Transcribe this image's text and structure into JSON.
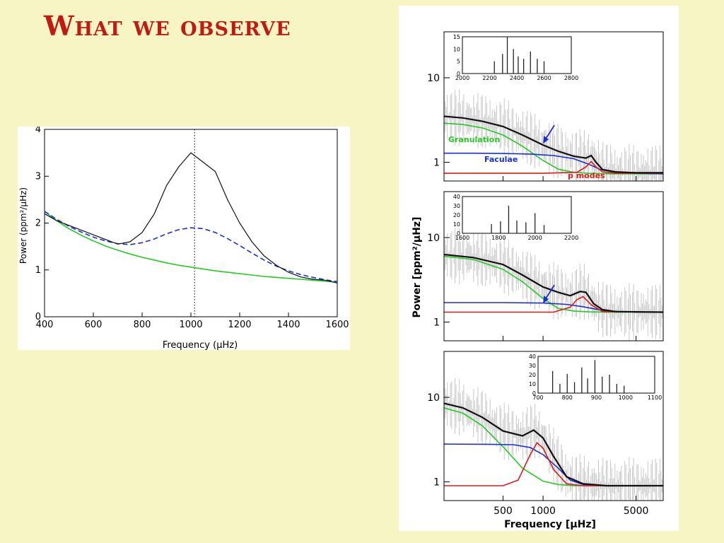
{
  "slide": {
    "title": "What we observe"
  },
  "colors": {
    "background": "#f8f5c4",
    "title": "#c11a12",
    "granulation": "#22cc22",
    "faculae": "#1a2fd6",
    "pmodes": "#e01a1a",
    "total": "#111111",
    "raw": "#c8c8c8",
    "pointer": "#1a2fd6"
  },
  "chart_data": [
    {
      "type": "line",
      "xlabel": "Frequency (μHz)",
      "ylabel": "Power (ppm²/μHz)",
      "xlim": [
        400,
        1600
      ],
      "ylim": [
        0,
        4
      ],
      "x_ticks": [
        400,
        600,
        800,
        1000,
        1200,
        1400,
        1600
      ],
      "y_ticks": [
        0,
        1,
        2,
        3,
        4
      ],
      "vertical_marker_x": 1015,
      "grid": false,
      "series": [
        {
          "style": "black solid (smoothed spectrum)",
          "color": "#111111",
          "x": [
            400,
            450,
            500,
            550,
            600,
            650,
            700,
            750,
            800,
            850,
            900,
            950,
            1000,
            1050,
            1100,
            1150,
            1200,
            1250,
            1300,
            1350,
            1400,
            1450,
            1500,
            1550,
            1600
          ],
          "y": [
            2.2,
            2.05,
            1.95,
            1.85,
            1.75,
            1.65,
            1.55,
            1.6,
            1.8,
            2.2,
            2.8,
            3.2,
            3.5,
            3.3,
            3.1,
            2.5,
            2.0,
            1.6,
            1.3,
            1.1,
            0.95,
            0.85,
            0.8,
            0.78,
            0.72
          ]
        },
        {
          "style": "blue dashed",
          "color": "#1a2fd6",
          "x": [
            400,
            450,
            500,
            550,
            600,
            650,
            700,
            750,
            800,
            850,
            900,
            950,
            1000,
            1050,
            1100,
            1150,
            1200,
            1250,
            1300,
            1350,
            1400,
            1450,
            1500,
            1550,
            1600
          ],
          "y": [
            2.25,
            2.08,
            1.93,
            1.81,
            1.7,
            1.62,
            1.56,
            1.54,
            1.58,
            1.66,
            1.77,
            1.86,
            1.9,
            1.88,
            1.8,
            1.67,
            1.52,
            1.36,
            1.21,
            1.08,
            0.98,
            0.9,
            0.84,
            0.79,
            0.75
          ]
        },
        {
          "style": "green solid",
          "color": "#22cc22",
          "x": [
            400,
            450,
            500,
            550,
            600,
            650,
            700,
            750,
            800,
            850,
            900,
            950,
            1000,
            1050,
            1100,
            1150,
            1200,
            1250,
            1300,
            1350,
            1400,
            1450,
            1500,
            1550,
            1600
          ],
          "y": [
            2.25,
            2.05,
            1.88,
            1.74,
            1.62,
            1.51,
            1.42,
            1.34,
            1.27,
            1.21,
            1.15,
            1.1,
            1.06,
            1.02,
            0.98,
            0.95,
            0.92,
            0.89,
            0.86,
            0.84,
            0.82,
            0.8,
            0.78,
            0.76,
            0.74
          ]
        }
      ]
    },
    {
      "type": "line",
      "xscale": "log",
      "yscale": "log",
      "xlabel": "Frequency [μHz]",
      "ylabel": "Power [ppm²/μHz]",
      "xlim": [
        180,
        8000
      ],
      "x_ticks": [
        500,
        1000,
        5000
      ],
      "y_ticks": [
        1,
        10
      ],
      "panels": [
        {
          "ylim": [
            0.6,
            35
          ],
          "arrow_at_x": 1000,
          "labels": [
            {
              "text": "Granulation",
              "color": "#22cc22"
            },
            {
              "text": "Faculae",
              "color": "#1a2fd6"
            },
            {
              "text": "p modes",
              "color": "#e01a1a"
            }
          ],
          "series": [
            {
              "name": "Granulation",
              "color": "#22cc22",
              "x": [
                180,
                250,
                350,
                500,
                700,
                1000,
                1300,
                1700,
                2200,
                3000,
                5000,
                8000
              ],
              "y": [
                2.9,
                2.8,
                2.55,
                2.1,
                1.55,
                1.05,
                0.83,
                0.76,
                0.74,
                0.73,
                0.73,
                0.73
              ]
            },
            {
              "name": "Faculae",
              "color": "#1a2fd6",
              "x": [
                180,
                300,
                500,
                800,
                1200,
                1700,
                2200,
                2700,
                3500,
                5000,
                8000
              ],
              "y": [
                1.28,
                1.28,
                1.27,
                1.25,
                1.2,
                1.1,
                0.95,
                0.82,
                0.76,
                0.74,
                0.73
              ]
            },
            {
              "name": "p modes",
              "color": "#e01a1a",
              "x": [
                180,
                1000,
                1800,
                2100,
                2300,
                2500,
                2800,
                3500,
                8000
              ],
              "y": [
                0.74,
                0.74,
                0.76,
                0.88,
                1.02,
                0.88,
                0.77,
                0.74,
                0.74
              ]
            },
            {
              "color": "#111111",
              "x": [
                180,
                250,
                350,
                500,
                700,
                1000,
                1300,
                1700,
                2100,
                2300,
                2500,
                2800,
                3500,
                5000,
                8000
              ],
              "y": [
                3.5,
                3.35,
                3.05,
                2.65,
                2.1,
                1.6,
                1.35,
                1.18,
                1.12,
                1.2,
                1.0,
                0.82,
                0.77,
                0.75,
                0.75
              ]
            }
          ],
          "inset": {
            "xlim": [
              2000,
              2800
            ],
            "ylim": [
              0,
              15
            ],
            "x_ticks": [
              2000,
              2200,
              2400,
              2600,
              2800
            ],
            "y_ticks": [
              0,
              5,
              10,
              15
            ],
            "peaks_x": [
              2235,
              2295,
              2330,
              2375,
              2410,
              2450,
              2500,
              2550,
              2600
            ],
            "peaks_y": [
              5,
              8,
              15,
              10,
              7,
              6,
              9,
              6,
              5
            ]
          }
        },
        {
          "ylim": [
            0.6,
            35
          ],
          "arrow_at_x": 1000,
          "series": [
            {
              "color": "#22cc22",
              "x": [
                180,
                300,
                500,
                700,
                1000,
                1300,
                1700,
                2200,
                3000,
                5000,
                8000
              ],
              "y": [
                6.0,
                5.5,
                4.2,
                3.0,
                1.9,
                1.45,
                1.35,
                1.32,
                1.31,
                1.31,
                1.31
              ]
            },
            {
              "color": "#1a2fd6",
              "x": [
                180,
                500,
                1000,
                1500,
                2000,
                2500,
                3000,
                5000,
                8000
              ],
              "y": [
                1.7,
                1.7,
                1.68,
                1.62,
                1.52,
                1.42,
                1.35,
                1.31,
                1.31
              ]
            },
            {
              "color": "#e01a1a",
              "x": [
                180,
                1200,
                1600,
                1800,
                2000,
                2300,
                2800,
                8000
              ],
              "y": [
                1.31,
                1.31,
                1.5,
                1.85,
                2.0,
                1.6,
                1.33,
                1.31
              ]
            },
            {
              "color": "#111111",
              "x": [
                180,
                300,
                500,
                700,
                1000,
                1300,
                1600,
                1900,
                2100,
                2400,
                2800,
                3500,
                8000
              ],
              "y": [
                6.3,
                5.8,
                4.8,
                3.6,
                2.6,
                2.25,
                2.05,
                2.3,
                2.25,
                1.65,
                1.4,
                1.33,
                1.31
              ]
            }
          ],
          "inset": {
            "xlim": [
              1600,
              2200
            ],
            "ylim": [
              0,
              40
            ],
            "x_ticks": [
              1600,
              1800,
              2000,
              2200
            ],
            "y_ticks": [
              0,
              10,
              20,
              30,
              40
            ],
            "peaks_x": [
              1760,
              1810,
              1855,
              1900,
              1950,
              2000,
              2050
            ],
            "peaks_y": [
              10,
              13,
              30,
              14,
              12,
              22,
              9
            ]
          }
        },
        {
          "ylim": [
            0.6,
            35
          ],
          "series": [
            {
              "color": "#22cc22",
              "x": [
                180,
                250,
                350,
                500,
                700,
                1000,
                1300,
                1700,
                2500,
                5000,
                8000
              ],
              "y": [
                7.5,
                6.5,
                4.6,
                2.6,
                1.45,
                1.02,
                0.93,
                0.9,
                0.9,
                0.9,
                0.9
              ]
            },
            {
              "color": "#1a2fd6",
              "x": [
                180,
                400,
                600,
                800,
                1000,
                1300,
                1600,
                2000,
                3000,
                8000
              ],
              "y": [
                2.8,
                2.78,
                2.75,
                2.55,
                2.1,
                1.45,
                1.05,
                0.93,
                0.9,
                0.9
              ]
            },
            {
              "color": "#e01a1a",
              "x": [
                180,
                500,
                650,
                800,
                900,
                1000,
                1200,
                1500,
                2000,
                8000
              ],
              "y": [
                0.9,
                0.9,
                1.05,
                2.1,
                2.9,
                2.5,
                1.4,
                0.95,
                0.9,
                0.9
              ]
            },
            {
              "color": "#111111",
              "x": [
                180,
                250,
                350,
                500,
                700,
                850,
                1000,
                1200,
                1500,
                2000,
                3000,
                8000
              ],
              "y": [
                8.5,
                7.5,
                5.8,
                4.0,
                3.5,
                4.1,
                3.3,
                2.0,
                1.15,
                0.95,
                0.9,
                0.9
              ]
            }
          ],
          "inset": {
            "xlim": [
              700,
              1100
            ],
            "ylim": [
              0,
              40
            ],
            "x_ticks": [
              700,
              800,
              900,
              1000,
              1100
            ],
            "y_ticks": [
              0,
              10,
              20,
              30,
              40
            ],
            "peaks_x": [
              750,
              775,
              800,
              825,
              850,
              870,
              895,
              920,
              945,
              970,
              995
            ],
            "peaks_y": [
              24,
              10,
              21,
              12,
              28,
              16,
              36,
              18,
              20,
              10,
              8
            ]
          }
        }
      ]
    }
  ]
}
